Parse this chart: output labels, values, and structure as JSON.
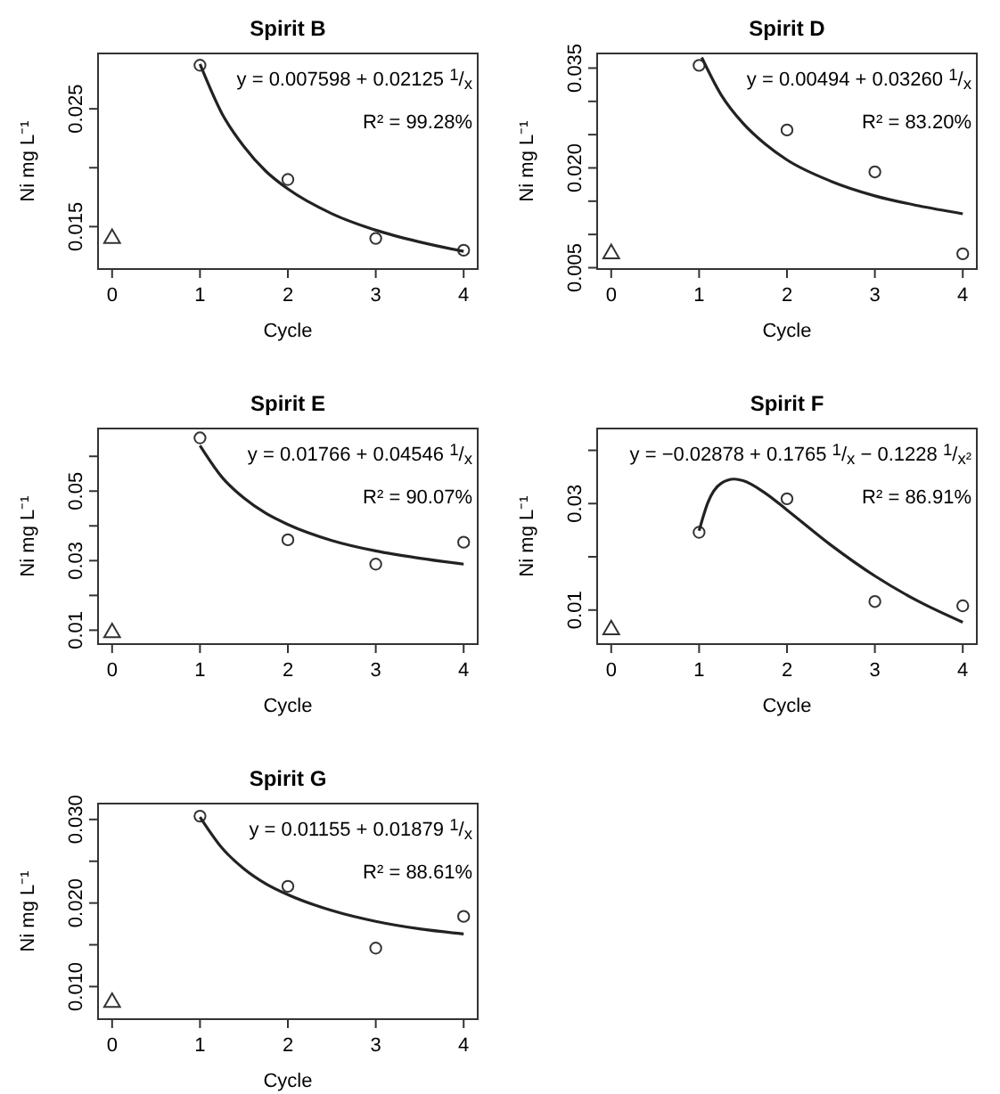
{
  "chart_data": [
    {
      "type": "scatter",
      "title": "Spirit B",
      "xlabel": "Cycle",
      "ylabel": "Ni mg L⁻¹",
      "xlim": [
        -0.16,
        4.16
      ],
      "xticks": [
        0,
        1,
        2,
        3,
        4
      ],
      "ylim": [
        0.0114,
        0.0297
      ],
      "yticks": [
        0.015,
        {
          "value": 0.02,
          "label": null
        },
        0.025
      ],
      "series": [
        {
          "type": "scatter",
          "marker": "circle",
          "color": "#333333",
          "x": [
            1,
            2,
            3,
            4
          ],
          "values": [
            0.0287,
            0.019,
            0.014,
            0.013
          ]
        },
        {
          "type": "scatter",
          "marker": "triangle",
          "color": "#333333",
          "x": [
            0
          ],
          "values": [
            0.014
          ]
        },
        {
          "type": "line",
          "marker": "none",
          "color": "#222222",
          "x": [
            1,
            1.25,
            1.5,
            1.75,
            2,
            2.5,
            3,
            3.5,
            4
          ],
          "values": [
            0.0288,
            0.0246,
            0.0218,
            0.0197,
            0.0182,
            0.0161,
            0.0147,
            0.0137,
            0.0129
          ]
        }
      ],
      "annotations": [
        "y = 0.007598 + 0.02125 $^{1}$/$_{x}$",
        "R² = 99.28%"
      ]
    },
    {
      "type": "scatter",
      "title": "Spirit D",
      "xlabel": "Cycle",
      "ylabel": "Ni mg L⁻¹",
      "xlim": [
        -0.16,
        4.16
      ],
      "xticks": [
        0,
        1,
        2,
        3,
        4
      ],
      "ylim": [
        0.0048,
        0.0372
      ],
      "yticks": [
        {
          "value": 0.005,
          "label": "0.005"
        },
        {
          "value": 0.01,
          "label": null
        },
        {
          "value": 0.015,
          "label": null
        },
        {
          "value": 0.02,
          "label": "0.020"
        },
        {
          "value": 0.025,
          "label": null
        },
        {
          "value": 0.03,
          "label": null
        },
        0.035
      ],
      "series": [
        {
          "type": "scatter",
          "marker": "circle",
          "color": "#333333",
          "x": [
            1,
            2,
            3,
            4
          ],
          "values": [
            0.0354,
            0.0257,
            0.0194,
            0.0071
          ]
        },
        {
          "type": "scatter",
          "marker": "triangle",
          "color": "#333333",
          "x": [
            0
          ],
          "values": [
            0.0071
          ]
        },
        {
          "type": "line",
          "marker": "none",
          "color": "#222222",
          "x": [
            1.03,
            1.25,
            1.5,
            1.75,
            2,
            2.5,
            3,
            3.5,
            4
          ],
          "values": [
            0.0366,
            0.031,
            0.0267,
            0.0236,
            0.0212,
            0.018,
            0.0158,
            0.0143,
            0.0131
          ]
        }
      ],
      "annotations": [
        "y = 0.00494 + 0.03260 $^{1}$/$_{x}$",
        "R² = 83.20%"
      ]
    },
    {
      "type": "scatter",
      "title": "Spirit E",
      "xlabel": "Cycle",
      "ylabel": "Ni mg L⁻¹",
      "xlim": [
        -0.16,
        4.16
      ],
      "xticks": [
        0,
        1,
        2,
        3,
        4
      ],
      "ylim": [
        0.006,
        0.068
      ],
      "yticks": [
        0.01,
        {
          "value": 0.02,
          "label": null
        },
        0.03,
        {
          "value": 0.04,
          "label": null
        },
        0.05,
        {
          "value": 0.06,
          "label": null
        }
      ],
      "series": [
        {
          "type": "scatter",
          "marker": "circle",
          "color": "#333333",
          "x": [
            1,
            2,
            3,
            4
          ],
          "values": [
            0.0653,
            0.036,
            0.029,
            0.0353
          ]
        },
        {
          "type": "scatter",
          "marker": "triangle",
          "color": "#333333",
          "x": [
            0
          ],
          "values": [
            0.0093
          ]
        },
        {
          "type": "line",
          "marker": "none",
          "color": "#222222",
          "x": [
            1,
            1.25,
            1.5,
            1.75,
            2,
            2.5,
            3,
            3.5,
            4
          ],
          "values": [
            0.0631,
            0.054,
            0.048,
            0.0436,
            0.0404,
            0.0358,
            0.0328,
            0.0307,
            0.029
          ]
        }
      ],
      "annotations": [
        "y = 0.01766 + 0.04546 $^{1}$/$_{x}$",
        "R² = 90.07%"
      ]
    },
    {
      "type": "scatter",
      "title": "Spirit F",
      "xlabel": "Cycle",
      "ylabel": "Ni mg L⁻¹",
      "xlim": [
        -0.16,
        4.16
      ],
      "xticks": [
        0,
        1,
        2,
        3,
        4
      ],
      "ylim": [
        0.0036,
        0.0441
      ],
      "yticks": [
        0.01,
        {
          "value": 0.02,
          "label": null
        },
        0.03,
        {
          "value": 0.04,
          "label": null
        }
      ],
      "series": [
        {
          "type": "scatter",
          "marker": "circle",
          "color": "#333333",
          "x": [
            1,
            2,
            3,
            4
          ],
          "values": [
            0.0246,
            0.0309,
            0.0116,
            0.0108
          ]
        },
        {
          "type": "scatter",
          "marker": "triangle",
          "color": "#333333",
          "x": [
            0
          ],
          "values": [
            0.0063
          ]
        },
        {
          "type": "line",
          "marker": "none",
          "color": "#222222",
          "x": [
            1,
            1.1,
            1.25,
            1.4,
            1.5,
            1.75,
            2,
            2.5,
            3,
            3.5,
            4
          ],
          "values": [
            0.0249,
            0.0302,
            0.0338,
            0.0346,
            0.0343,
            0.032,
            0.0288,
            0.0222,
            0.0164,
            0.0116,
            0.0077
          ]
        }
      ],
      "annotations": [
        "y = −0.02878 + 0.1765 $^{1}$/$_{x}$ − 0.1228 $^{1}$/$_{x²}$",
        "R² = 86.91%"
      ]
    },
    {
      "type": "scatter",
      "title": "Spirit G",
      "xlabel": "Cycle",
      "ylabel": "Ni mg L⁻¹",
      "xlim": [
        -0.16,
        4.16
      ],
      "xticks": [
        0,
        1,
        2,
        3,
        4
      ],
      "ylim": [
        0.0061,
        0.0319
      ],
      "yticks": [
        {
          "value": 0.01,
          "label": "0.010"
        },
        {
          "value": 0.015,
          "label": null
        },
        {
          "value": 0.02,
          "label": "0.020"
        },
        {
          "value": 0.025,
          "label": null
        },
        {
          "value": 0.03,
          "label": "0.030"
        }
      ],
      "series": [
        {
          "type": "scatter",
          "marker": "circle",
          "color": "#333333",
          "x": [
            1,
            2,
            3,
            4
          ],
          "values": [
            0.0304,
            0.022,
            0.0146,
            0.0184
          ]
        },
        {
          "type": "scatter",
          "marker": "triangle",
          "color": "#333333",
          "x": [
            0
          ],
          "values": [
            0.0081
          ]
        },
        {
          "type": "line",
          "marker": "none",
          "color": "#222222",
          "x": [
            1,
            1.25,
            1.5,
            1.75,
            2,
            2.5,
            3,
            3.5,
            4
          ],
          "values": [
            0.0303,
            0.0266,
            0.0241,
            0.0223,
            0.021,
            0.0191,
            0.0178,
            0.0169,
            0.0163
          ]
        }
      ],
      "annotations": [
        "y = 0.01155 + 0.01879 $^{1}$/$_{x}$",
        "R² = 88.61%"
      ]
    }
  ]
}
